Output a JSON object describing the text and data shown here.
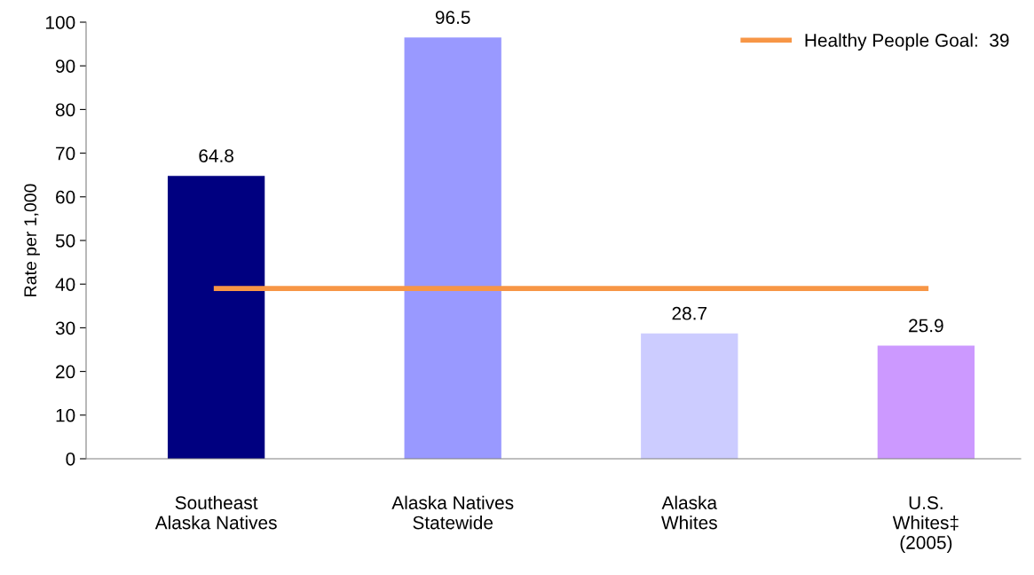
{
  "chart_data": {
    "type": "bar",
    "ylabel": "Rate per 1,000",
    "categories": [
      "Southeast\nAlaska Natives",
      "Alaska Natives\nStatewide",
      "Alaska\nWhites",
      "U.S.\nWhites‡\n(2005)"
    ],
    "series": [
      {
        "colors": [
          "#000080",
          "#9999ff",
          "#ccccff",
          "#cc99ff"
        ],
        "values": [
          64.8,
          96.5,
          28.7,
          25.9
        ],
        "value_labels": [
          "64.8",
          "96.5",
          "28.7",
          "25.9"
        ]
      },
      {
        "type": "line",
        "name": "Healthy People Goal:  39",
        "color": "#f79646",
        "values": [
          39,
          39,
          39,
          39
        ]
      }
    ],
    "ylim": [
      0,
      100
    ],
    "yticks": [
      0,
      10,
      20,
      30,
      40,
      50,
      60,
      70,
      80,
      90,
      100
    ],
    "grid": false,
    "legend": "top right"
  }
}
